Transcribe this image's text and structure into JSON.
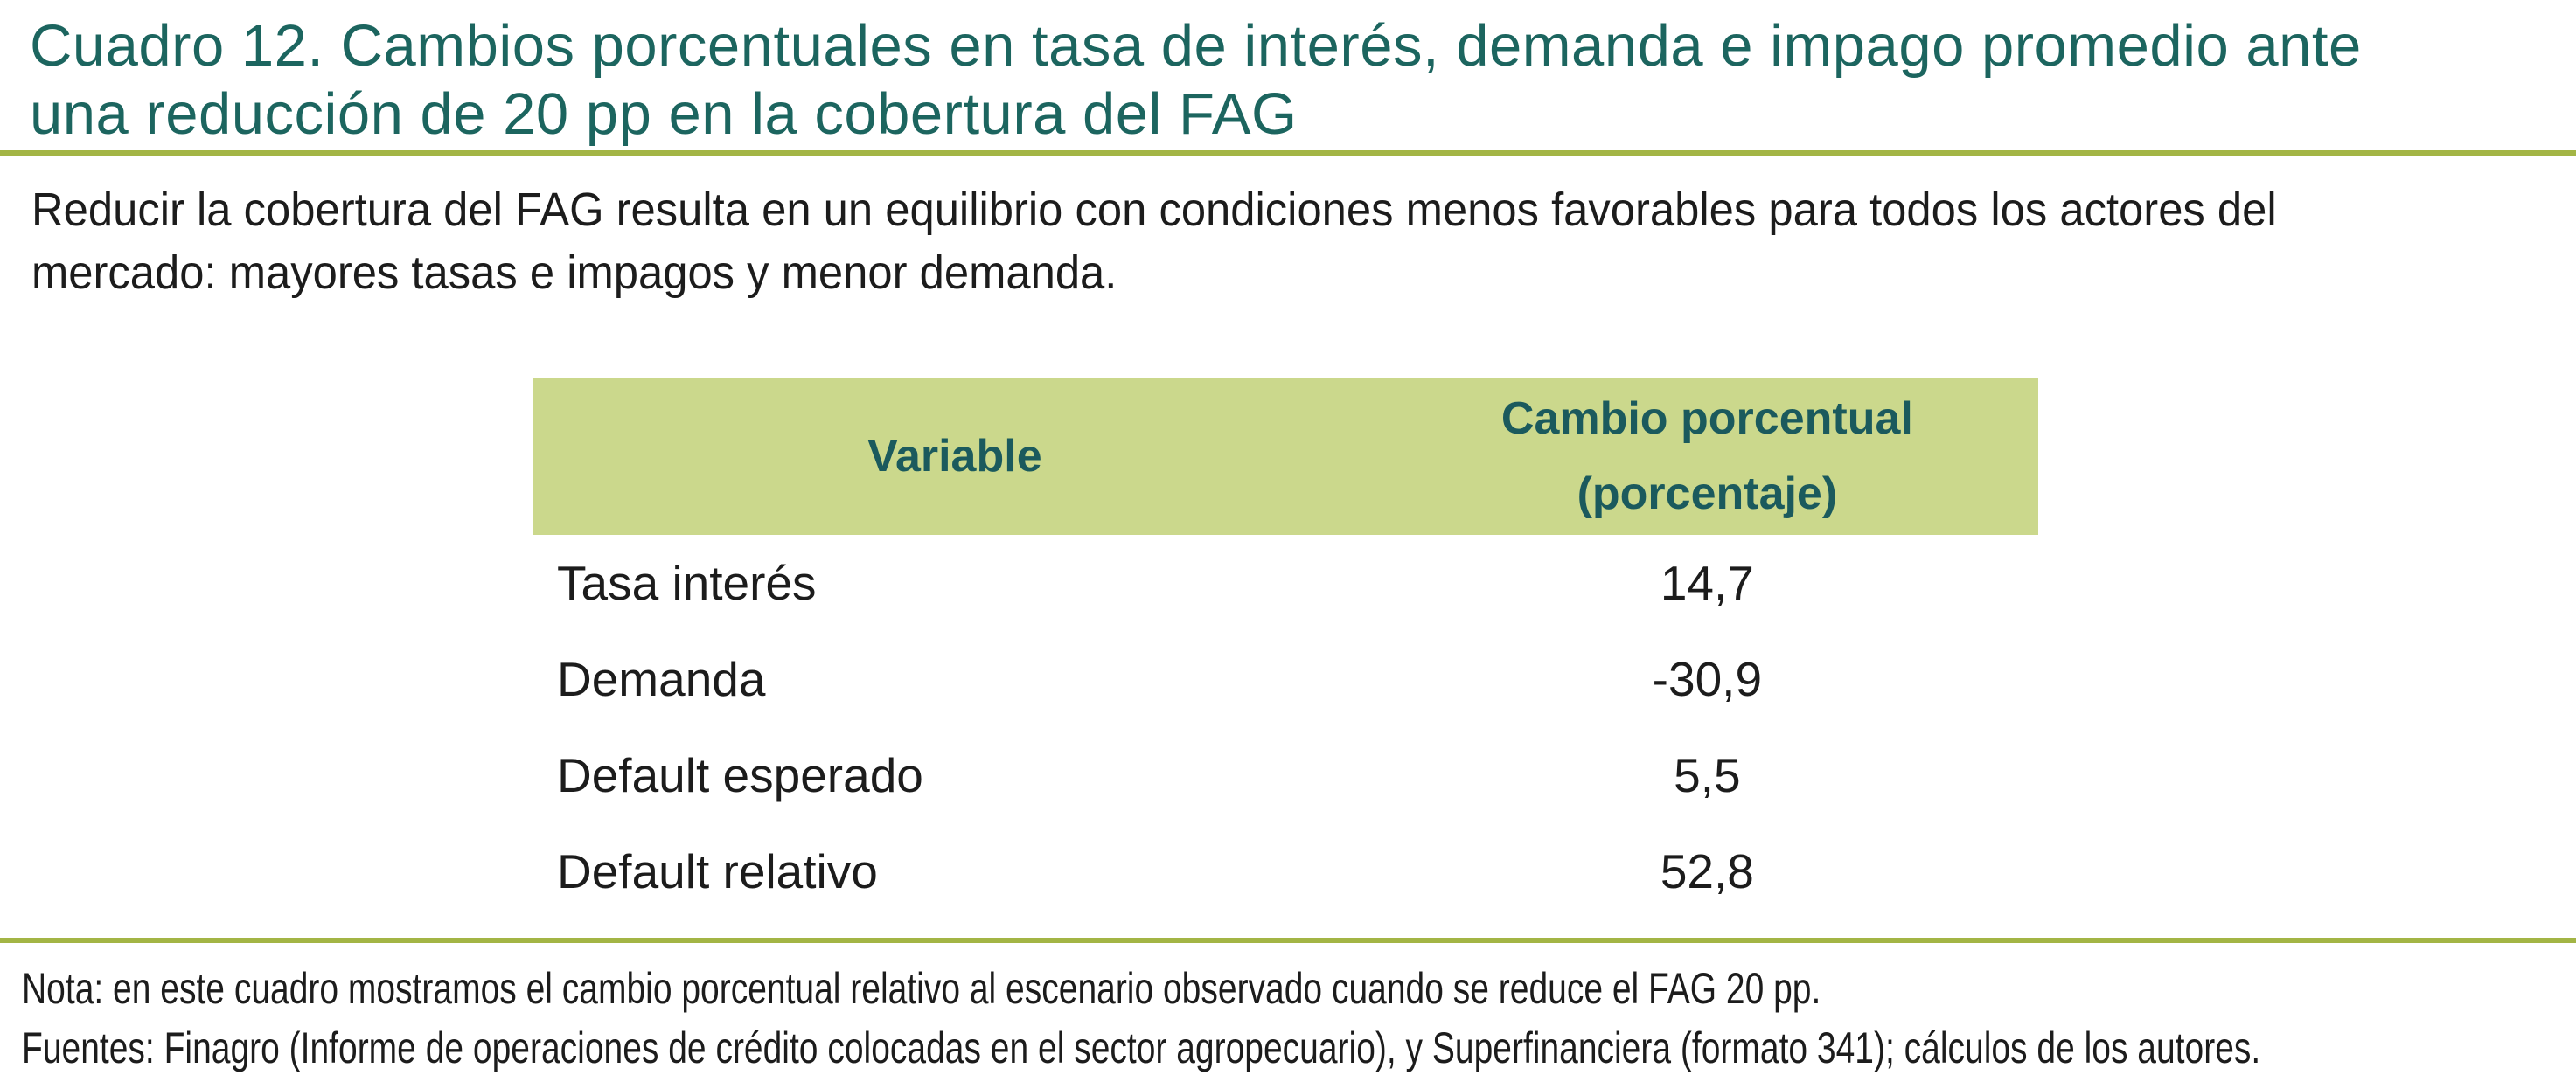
{
  "title": {
    "full": "Cuadro 12. Cambios porcentuales en tasa de interés, demanda e impago promedio ante una reducción de 20 pp en la cobertura del FAG",
    "lines": [
      "Cuadro 12. Cambios porcentuales en tasa de interés, demanda e impago promedio ante",
      "una reducción de 20 pp en la cobertura del FAG"
    ]
  },
  "intro": {
    "full": "Reducir la cobertura del FAG resulta en un equilibrio con condiciones menos favorables para todos los actores del mercado: mayores tasas e impagos y menor demanda.",
    "lines": [
      "Reducir la cobertura del FAG resulta en un equilibrio con condiciones menos favorables para todos los actores del",
      "mercado: mayores tasas e impagos y menor demanda."
    ]
  },
  "table": {
    "header": {
      "variable": "Variable",
      "change_line1": "Cambio porcentual",
      "change_line2": "(porcentaje)"
    },
    "rows": [
      {
        "label": "Tasa interés",
        "value": "14,7"
      },
      {
        "label": "Demanda",
        "value": "-30,9"
      },
      {
        "label": "Default esperado",
        "value": "5,5"
      },
      {
        "label": "Default relativo",
        "value": "52,8"
      }
    ]
  },
  "footer": {
    "nota": "Nota: en este cuadro mostramos el cambio porcentual relativo al escenario observado cuando se reduce el FAG 20 pp.",
    "fuentes": "Fuentes: Finagro (Informe de operaciones de crédito colocadas en el sector agropecuario), y Superfinanciera (formato 341); cálculos de los autores."
  },
  "colors": {
    "title_teal": "#1c655f",
    "table_header_text_teal": "#1b5a5d",
    "table_header_bg_green": "#cbd88c",
    "rule_olive": "#a3b545",
    "body_text": "#1c1c1c"
  },
  "chart_data": {
    "type": "table",
    "title": "Cuadro 12. Cambios porcentuales en tasa de interés, demanda e impago promedio ante una reducción de 20 pp en la cobertura del FAG",
    "columns": [
      "Variable",
      "Cambio porcentual (porcentaje)"
    ],
    "categories": [
      "Tasa interés",
      "Demanda",
      "Default esperado",
      "Default relativo"
    ],
    "values": [
      14.7,
      -30.9,
      5.5,
      52.8
    ],
    "note": "Nota: en este cuadro mostramos el cambio porcentual relativo al escenario observado cuando se reduce el FAG 20 pp.",
    "sources": "Fuentes: Finagro (Informe de operaciones de crédito colocadas en el sector agropecuario), y Superfinanciera (formato 341); cálculos de los autores."
  }
}
